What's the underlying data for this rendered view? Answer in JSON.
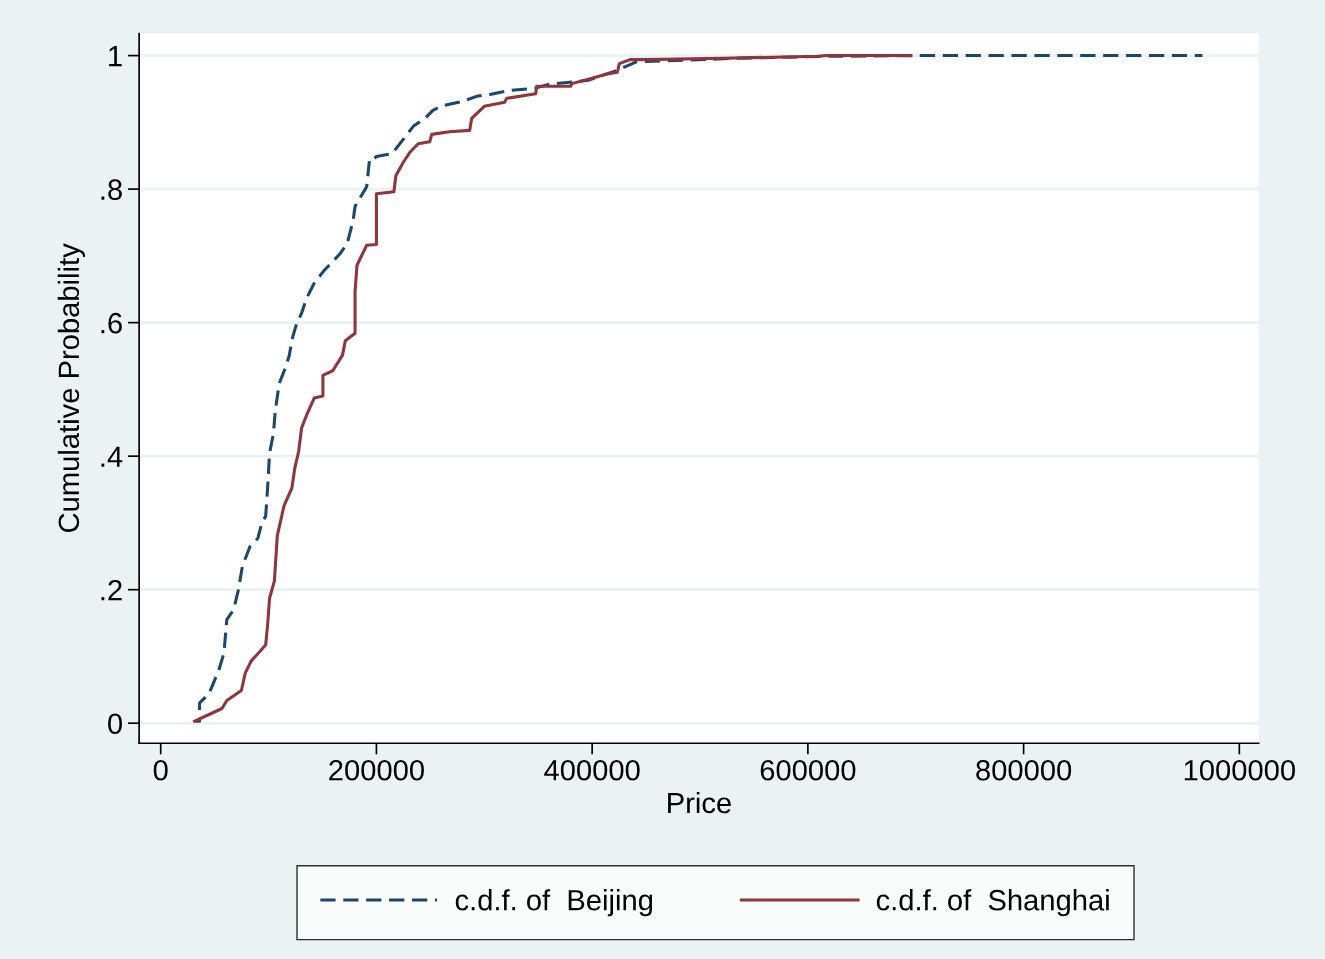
{
  "chart_data": {
    "type": "line",
    "xlabel": "Price",
    "ylabel": "Cumulative Probability",
    "xlim": [
      -20000,
      1018000
    ],
    "ylim": [
      -0.03,
      1.033
    ],
    "xticks": [
      0,
      200000,
      400000,
      600000,
      800000,
      1000000
    ],
    "yticks": [
      {
        "value": 0,
        "label": "0"
      },
      {
        "value": 0.2,
        "label": ".2"
      },
      {
        "value": 0.4,
        "label": ".4"
      },
      {
        "value": 0.6,
        "label": ".6"
      },
      {
        "value": 0.8,
        "label": ".8"
      },
      {
        "value": 1,
        "label": "1"
      }
    ],
    "grid": "y",
    "legend": "bottom",
    "marker": "none",
    "series": [
      {
        "name": "c.d.f. of  Beijing",
        "color": "#1a476f",
        "line_style": "dashed",
        "x": [
          32400,
          36000,
          36000,
          45000,
          54000,
          58600,
          61300,
          67600,
          72100,
          75700,
          82900,
          90100,
          93700,
          97300,
          99100,
          100900,
          104500,
          106300,
          109900,
          115300,
          118900,
          122500,
          126100,
          130600,
          135100,
          142300,
          151400,
          160400,
          166700,
          173000,
          178400,
          180200,
          191000,
          193700,
          198200,
          200000,
          214400,
          219800,
          227000,
          234200,
          245000,
          252300,
          261300,
          279300,
          292800,
          306300,
          324300,
          346800,
          360400,
          396400,
          423400,
          441400,
          486500,
          531500,
          621600,
          698200,
          965800
        ],
        "values": [
          0.003,
          0.003,
          0.03,
          0.045,
          0.08,
          0.105,
          0.155,
          0.17,
          0.2,
          0.235,
          0.265,
          0.277,
          0.3,
          0.31,
          0.352,
          0.404,
          0.434,
          0.469,
          0.509,
          0.531,
          0.549,
          0.579,
          0.599,
          0.614,
          0.636,
          0.659,
          0.678,
          0.693,
          0.704,
          0.719,
          0.753,
          0.774,
          0.804,
          0.846,
          0.846,
          0.849,
          0.853,
          0.864,
          0.879,
          0.894,
          0.906,
          0.918,
          0.925,
          0.931,
          0.939,
          0.942,
          0.948,
          0.951,
          0.957,
          0.963,
          0.978,
          0.991,
          0.993,
          0.996,
          0.999,
          1,
          1
        ]
      },
      {
        "name": "c.d.f. of  Shanghai",
        "color": "#90353b",
        "line_style": "solid",
        "x": [
          31500,
          56800,
          61300,
          74800,
          78400,
          83800,
          97300,
          99100,
          100900,
          105400,
          108100,
          114400,
          121600,
          124300,
          127900,
          130600,
          135100,
          142300,
          150400,
          150400,
          159500,
          168500,
          171200,
          180200,
          180200,
          182000,
          191000,
          200000,
          200000,
          216200,
          218000,
          225200,
          231500,
          238700,
          249500,
          251300,
          267600,
          286500,
          288300,
          300000,
          318900,
          320700,
          347700,
          348600,
          380200,
          381100,
          400000,
          412600,
          423400,
          425200,
          435100,
          447700,
          521600,
          609000,
          618000,
          695500
        ],
        "values": [
          0.003,
          0.022,
          0.034,
          0.049,
          0.075,
          0.093,
          0.117,
          0.147,
          0.187,
          0.213,
          0.281,
          0.326,
          0.352,
          0.382,
          0.407,
          0.442,
          0.461,
          0.487,
          0.49,
          0.521,
          0.528,
          0.551,
          0.573,
          0.584,
          0.647,
          0.686,
          0.716,
          0.717,
          0.793,
          0.796,
          0.82,
          0.841,
          0.856,
          0.868,
          0.871,
          0.882,
          0.886,
          0.888,
          0.906,
          0.924,
          0.93,
          0.936,
          0.943,
          0.954,
          0.954,
          0.958,
          0.966,
          0.972,
          0.975,
          0.988,
          0.994,
          0.994,
          0.996,
          0.999,
          1,
          1
        ]
      }
    ]
  }
}
